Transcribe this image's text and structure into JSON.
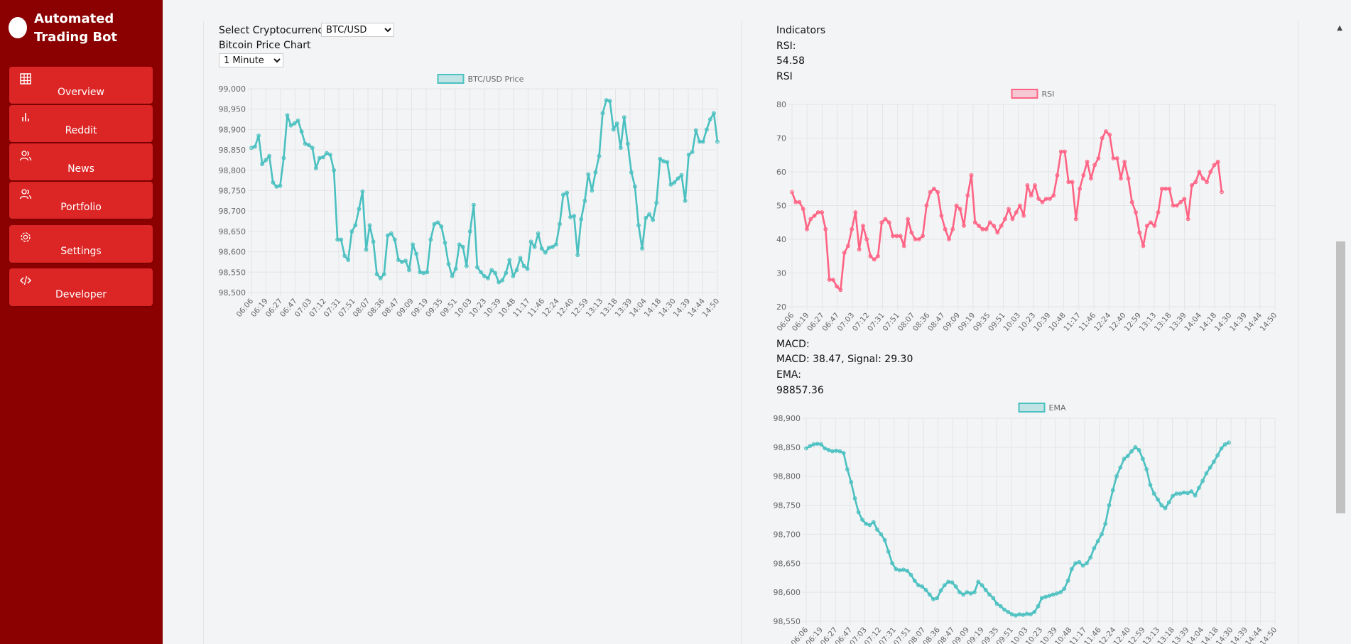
{
  "app": {
    "title": "Automated Trading Bot"
  },
  "sidebar": {
    "items": [
      {
        "label": "Overview",
        "icon": "grid-icon"
      },
      {
        "label": "Reddit",
        "icon": "bar-chart-icon"
      },
      {
        "label": "News",
        "icon": "users-icon"
      },
      {
        "label": "Portfolio",
        "icon": "users-icon"
      },
      {
        "label": "Settings",
        "icon": "gear-icon"
      },
      {
        "label": "Developer",
        "icon": "code-icon"
      }
    ]
  },
  "left_panel": {
    "crypto_label": "Select Cryptocurrency:",
    "crypto_selected": "BTC/USD",
    "chart_heading": "Bitcoin Price Chart",
    "interval_selected": "1 Minute"
  },
  "right_panel": {
    "indicators_heading": "Indicators",
    "rsi_label": "RSI:",
    "rsi_value": "54.58",
    "rsi_sublabel": "RSI",
    "macd_label": "MACD:",
    "macd_value": "MACD: 38.47, Signal: 29.30",
    "ema_label": "EMA:",
    "ema_value": "98857.36"
  },
  "colors": {
    "sidebar_bg": "#8b0000",
    "nav_item_bg": "#dc2626",
    "teal": "#4bc0c0",
    "pink": "#ff6384"
  },
  "chart_data": [
    {
      "type": "line",
      "legend": "BTC/USD Price",
      "ylim": [
        98500,
        99000
      ],
      "y_ticks": [
        "98,500",
        "98,550",
        "98,600",
        "98,650",
        "98,700",
        "98,750",
        "98,800",
        "98,850",
        "98,900",
        "98,950",
        "99,000"
      ],
      "x_ticks": [
        "06:06",
        "06:19",
        "06:27",
        "06:47",
        "07:03",
        "07:12",
        "07:31",
        "07:51",
        "08:07",
        "08:36",
        "08:47",
        "09:09",
        "09:19",
        "09:35",
        "09:51",
        "10:03",
        "10:23",
        "10:39",
        "10:48",
        "11:17",
        "11:46",
        "12:24",
        "12:40",
        "12:59",
        "13:13",
        "13:18",
        "13:39",
        "14:04",
        "14:18",
        "14:30",
        "14:39",
        "14:44",
        "14:50"
      ],
      "series": [
        {
          "color": "#4bc0c0",
          "values": [
            98855,
            98858,
            98885,
            98815,
            98825,
            98835,
            98770,
            98760,
            98762,
            98830,
            98935,
            98910,
            98915,
            98922,
            98895,
            98865,
            98862,
            98855,
            98805,
            98830,
            98832,
            98842,
            98838,
            98800,
            98630,
            98630,
            98590,
            98580,
            98650,
            98665,
            98705,
            98748,
            98605,
            98665,
            98625,
            98545,
            98535,
            98545,
            98640,
            98645,
            98630,
            98580,
            98575,
            98578,
            98555,
            98618,
            98595,
            98550,
            98548,
            98550,
            98630,
            98668,
            98672,
            98662,
            98622,
            98570,
            98540,
            98558,
            98618,
            98612,
            98565,
            98650,
            98715,
            98562,
            98550,
            98540,
            98535,
            98555,
            98548,
            98525,
            98530,
            98548,
            98580,
            98540,
            98555,
            98585,
            98565,
            98558,
            98625,
            98612,
            98645,
            98608,
            98598,
            98610,
            98612,
            98618,
            98668,
            98740,
            98745,
            98685,
            98688,
            98592,
            98680,
            98725,
            98790,
            98750,
            98795,
            98835,
            98940,
            98972,
            98970,
            98900,
            98915,
            98855,
            98930,
            98865,
            98795,
            98760,
            98665,
            98608,
            98683,
            98692,
            98678,
            98720,
            98828,
            98822,
            98820,
            98765,
            98770,
            98780,
            98788,
            98725,
            98838,
            98845,
            98898,
            98870,
            98870,
            98900,
            98925,
            98940,
            98870
          ]
        }
      ]
    },
    {
      "type": "line",
      "legend": "RSI",
      "ylim": [
        20,
        80
      ],
      "y_ticks": [
        "20",
        "30",
        "40",
        "50",
        "60",
        "70",
        "80"
      ],
      "x_ticks": [
        "06:06",
        "06:19",
        "06:27",
        "06:47",
        "07:03",
        "07:12",
        "07:31",
        "07:51",
        "08:07",
        "08:36",
        "08:47",
        "09:09",
        "09:19",
        "09:35",
        "09:51",
        "10:03",
        "10:23",
        "10:39",
        "10:48",
        "11:17",
        "11:46",
        "12:24",
        "12:40",
        "12:59",
        "13:13",
        "13:18",
        "13:39",
        "14:04",
        "14:18",
        "14:30",
        "14:39",
        "14:44",
        "14:50"
      ],
      "series": [
        {
          "color": "#ff6384",
          "values": [
            54,
            51,
            51,
            49,
            43,
            46,
            47,
            48,
            48,
            43,
            28,
            28,
            26,
            25,
            36,
            38,
            43,
            48,
            37,
            44,
            40,
            35,
            34,
            35,
            45,
            46,
            45,
            41,
            41,
            41,
            38,
            46,
            42,
            40,
            40,
            41,
            50,
            54,
            55,
            54,
            47,
            43,
            40,
            43,
            50,
            49,
            44,
            53,
            59,
            45,
            44,
            43,
            43,
            45,
            44,
            42,
            44,
            46,
            49,
            46,
            48,
            50,
            47,
            56,
            53,
            56,
            52,
            51,
            52,
            52,
            53,
            59,
            66,
            66,
            57,
            57,
            46,
            55,
            59,
            63,
            58,
            62,
            64,
            70,
            72,
            71,
            64,
            64,
            58,
            63,
            58,
            51,
            48,
            42,
            38,
            44,
            45,
            44,
            48,
            55,
            55,
            55,
            50,
            50,
            51,
            52,
            46,
            56,
            57,
            60,
            58,
            57,
            60,
            62,
            63,
            54
          ]
        }
      ]
    },
    {
      "type": "line",
      "legend": "EMA",
      "ylim": [
        98550,
        98900
      ],
      "y_ticks": [
        "98,550",
        "98,600",
        "98,650",
        "98,700",
        "98,750",
        "98,800",
        "98,850",
        "98,900"
      ],
      "x_ticks": [
        "06:06",
        "06:19",
        "06:27",
        "06:47",
        "07:03",
        "07:12",
        "07:31",
        "07:51",
        "08:07",
        "08:36",
        "08:47",
        "09:09",
        "09:19",
        "09:35",
        "09:51",
        "10:03",
        "10:23",
        "10:39",
        "10:48",
        "11:17",
        "11:46",
        "12:24",
        "12:40",
        "12:59",
        "13:13",
        "13:18",
        "13:39",
        "14:04",
        "14:18",
        "14:30",
        "14:39",
        "14:44",
        "14:50"
      ],
      "series": [
        {
          "color": "#4bc0c0",
          "values": [
            98848,
            98852,
            98855,
            98856,
            98855,
            98848,
            98845,
            98843,
            98844,
            98843,
            98840,
            98812,
            98790,
            98762,
            98738,
            98725,
            98718,
            98716,
            98721,
            98708,
            98700,
            98690,
            98670,
            98650,
            98640,
            98638,
            98639,
            98637,
            98630,
            98620,
            98612,
            98610,
            98604,
            98596,
            98588,
            98590,
            98603,
            98612,
            98618,
            98617,
            98610,
            98600,
            98596,
            98600,
            98598,
            98600,
            98618,
            98612,
            98604,
            98596,
            98590,
            98580,
            98576,
            98570,
            98566,
            98562,
            98560,
            98562,
            98561,
            98563,
            98562,
            98566,
            98576,
            98590,
            98592,
            98594,
            98596,
            98598,
            98600,
            98606,
            98620,
            98640,
            98650,
            98652,
            98646,
            98650,
            98660,
            98676,
            98688,
            98700,
            98718,
            98750,
            98776,
            98800,
            98815,
            98830,
            98835,
            98843,
            98850,
            98845,
            98830,
            98812,
            98785,
            98770,
            98760,
            98750,
            98745,
            98755,
            98766,
            98770,
            98770,
            98772,
            98771,
            98774,
            98767,
            98780,
            98792,
            98805,
            98815,
            98825,
            98836,
            98848,
            98855,
            98858
          ]
        }
      ]
    }
  ]
}
